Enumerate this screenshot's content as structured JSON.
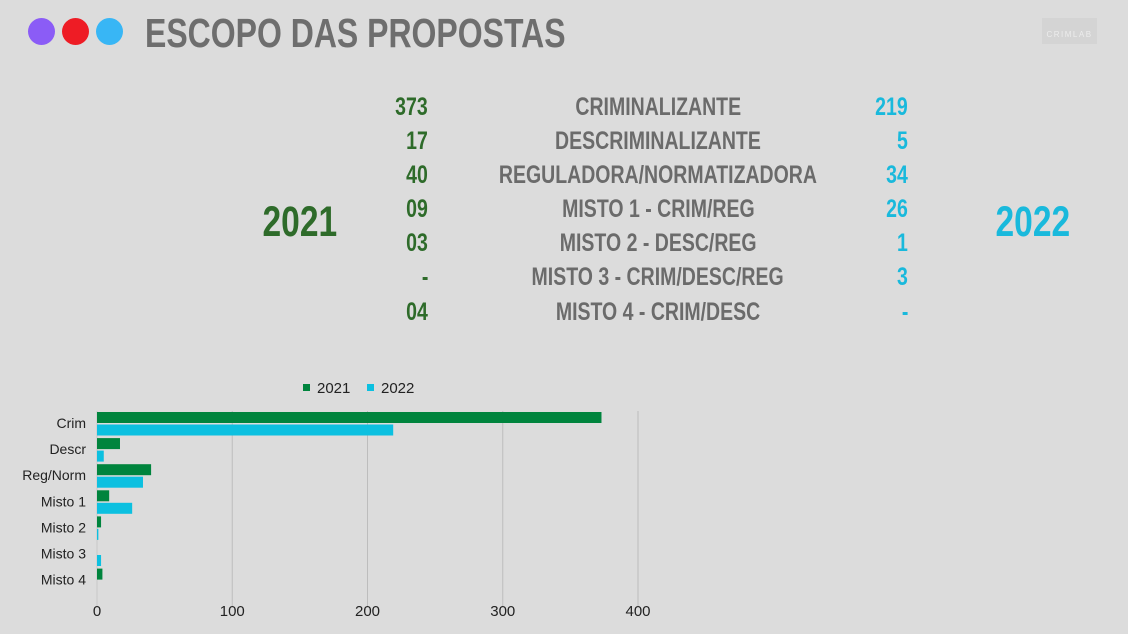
{
  "header": {
    "title": "ESCOPO DAS PROPOSTAS",
    "dots": [
      "#8b5cf6",
      "#ee1c25",
      "#38b6f5"
    ],
    "logo": "CRIMLAB"
  },
  "table": {
    "year_left": "2021",
    "year_right": "2022",
    "colors": {
      "left": "#2e6b2a",
      "right": "#19b9dc",
      "label": "#6b6b6b"
    },
    "rows": [
      {
        "left": "373",
        "label": "CRIMINALIZANTE",
        "right": "219"
      },
      {
        "left": "17",
        "label": "DESCRIMINALIZANTE",
        "right": "5"
      },
      {
        "left": "40",
        "label": "REGULADORA/NORMATIZADORA",
        "right": "34"
      },
      {
        "left": "09",
        "label": "MISTO 1 - CRIM/REG",
        "right": "26"
      },
      {
        "left": "03",
        "label": "MISTO 2 - DESC/REG",
        "right": "1"
      },
      {
        "left": "-",
        "label": "MISTO 3 - CRIM/DESC/REG",
        "right": "3"
      },
      {
        "left": "04",
        "label": "MISTO 4 - CRIM/DESC",
        "right": "-"
      }
    ]
  },
  "chart_data": {
    "type": "bar",
    "orientation": "horizontal",
    "categories": [
      "Crim",
      "Descr",
      "Reg/Norm",
      "Misto 1",
      "Misto 2",
      "Misto 3",
      "Misto 4"
    ],
    "series": [
      {
        "name": "2021",
        "color": "#00843d",
        "values": [
          373,
          17,
          40,
          9,
          3,
          0,
          4
        ]
      },
      {
        "name": "2022",
        "color": "#0cc0e0",
        "values": [
          219,
          5,
          34,
          26,
          1,
          3,
          0
        ]
      }
    ],
    "xticks": [
      "0",
      "100",
      "200",
      "300",
      "400"
    ],
    "xlim": [
      0,
      400
    ],
    "grid": true,
    "legend": "top"
  }
}
